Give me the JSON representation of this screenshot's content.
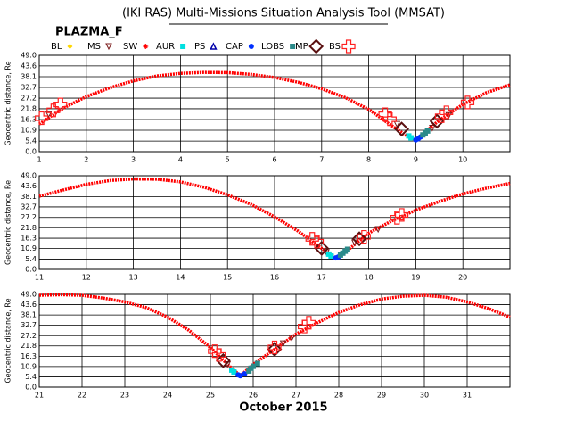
{
  "title": "(IKI RAS) Multi-Missions Situation Analysis Tool (MMSAT)",
  "subtitle": "PLAZMA_F",
  "xlabel": "October 2015",
  "chart_data": [
    {
      "type": "scatter",
      "ylabel": "Geocentric distance, Re",
      "xlim": [
        1,
        11
      ],
      "ylim": [
        0,
        49
      ],
      "grid": true,
      "xticks": [
        1,
        2,
        3,
        4,
        5,
        6,
        7,
        8,
        9,
        10
      ],
      "yticks": [
        {
          "value": 0,
          "label": "0.0"
        },
        5.4,
        10.9,
        16.3,
        21.8,
        27.2,
        32.7,
        38.1,
        43.6,
        {
          "value": 49,
          "label": "49.0"
        }
      ],
      "series": [
        {
          "name": "BL",
          "color": "#ffd700",
          "marker": "diamond",
          "x": [],
          "values": []
        },
        {
          "name": "MS",
          "color": "#7a1a1a",
          "marker": "tri-down",
          "x": [
            1.2,
            8.6,
            9.35,
            9.7
          ],
          "values": [
            19,
            14,
            12,
            18.5
          ]
        },
        {
          "name": "SW",
          "color": "#ff0000",
          "marker": "line",
          "x": [
            1,
            1.5,
            2,
            2.5,
            3,
            3.5,
            4,
            4.5,
            5,
            5.5,
            6,
            6.5,
            7,
            7.5,
            8,
            8.5,
            8.9,
            9,
            9.5,
            10,
            10.5,
            11
          ],
          "values": [
            14,
            22,
            28,
            32.5,
            36,
            38.5,
            39.8,
            40.3,
            40.2,
            39.3,
            37.7,
            35.3,
            32,
            27.5,
            21.5,
            13,
            6.5,
            6,
            16,
            24,
            30,
            34
          ]
        },
        {
          "name": "AUR",
          "color": "#00e0e0",
          "marker": "square",
          "x": [
            8.85,
            8.9
          ],
          "values": [
            8,
            7
          ]
        },
        {
          "name": "PS",
          "color": "#0000aa",
          "marker": "tri-up",
          "x": [],
          "values": []
        },
        {
          "name": "CAP",
          "color": "#0030ff",
          "marker": "dot",
          "x": [
            9,
            9.05,
            9.1
          ],
          "values": [
            6,
            6.5,
            7.5
          ]
        },
        {
          "name": "LOBS",
          "color": "#2a8a8a",
          "marker": "square",
          "x": [
            9.15,
            9.2,
            9.25
          ],
          "values": [
            8.5,
            9.5,
            10.5
          ]
        },
        {
          "name": "MP",
          "color": "#5a1010",
          "marker": "big-diamond",
          "x": [
            8.7,
            9.45
          ],
          "values": [
            11.5,
            15.5
          ]
        },
        {
          "name": "BS",
          "color": "#ff2020",
          "marker": "cross",
          "x": [
            1.05,
            1.3,
            1.45,
            8.35,
            8.45,
            9.55,
            9.65,
            10.1
          ],
          "values": [
            17,
            21,
            24,
            19,
            16.5,
            18,
            20,
            25
          ]
        }
      ]
    },
    {
      "type": "scatter",
      "ylabel": "Geocentric distance, Re",
      "xlim": [
        11,
        21
      ],
      "ylim": [
        0,
        49
      ],
      "grid": true,
      "xticks": [
        11,
        12,
        13,
        14,
        15,
        16,
        17,
        18,
        19,
        20
      ],
      "yticks": [
        {
          "value": 0,
          "label": "0.0"
        },
        5.4,
        10.9,
        16.3,
        21.8,
        27.2,
        32.7,
        38.1,
        43.6,
        {
          "value": 49,
          "label": "49.0"
        }
      ],
      "series": [
        {
          "color": "#ffd700",
          "marker": "diamond",
          "x": [],
          "values": []
        },
        {
          "color": "#7a1a1a",
          "marker": "tri-down",
          "x": [
            17.1,
            17.7,
            18.2
          ],
          "values": [
            9,
            14,
            21
          ]
        },
        {
          "color": "#ff0000",
          "marker": "line",
          "x": [
            11,
            11.5,
            12,
            12.5,
            13,
            13.5,
            14,
            14.5,
            15,
            15.5,
            16,
            16.5,
            17,
            17.3,
            17.6,
            18,
            18.5,
            19,
            19.5,
            20,
            20.5,
            21
          ],
          "values": [
            38.3,
            41.5,
            44.5,
            46.5,
            47.3,
            47.2,
            45.8,
            43,
            39,
            34,
            27.5,
            20,
            11,
            6,
            11,
            19,
            25.5,
            31,
            35.5,
            39.5,
            42.5,
            45
          ]
        },
        {
          "color": "#00e0e0",
          "marker": "square",
          "x": [
            17.15,
            17.2
          ],
          "values": [
            8,
            7
          ]
        },
        {
          "color": "#0000aa",
          "marker": "tri-up",
          "x": [],
          "values": []
        },
        {
          "color": "#0030ff",
          "marker": "dot",
          "x": [
            17.3,
            17.35
          ],
          "values": [
            6,
            6.5
          ]
        },
        {
          "color": "#2a8a8a",
          "marker": "square",
          "x": [
            17.4,
            17.45,
            17.5,
            17.55
          ],
          "values": [
            7.5,
            8.5,
            9.5,
            10.5
          ]
        },
        {
          "color": "#5a1010",
          "marker": "big-diamond",
          "x": [
            17,
            17.8
          ],
          "values": [
            11,
            16
          ]
        },
        {
          "color": "#ff2020",
          "marker": "cross",
          "x": [
            16.8,
            16.9,
            17.9,
            18.6,
            18.7
          ],
          "values": [
            16,
            14.5,
            17,
            27,
            28.5
          ]
        }
      ]
    },
    {
      "type": "scatter",
      "ylabel": "Geocentric distance, Re",
      "xlim": [
        21,
        32
      ],
      "ylim": [
        0,
        49
      ],
      "grid": true,
      "xticks": [
        21,
        22,
        23,
        24,
        25,
        26,
        27,
        28,
        29,
        30,
        31
      ],
      "yticks": [
        {
          "value": 0,
          "label": "0.0"
        },
        5.4,
        10.9,
        16.3,
        21.8,
        27.2,
        32.7,
        38.1,
        43.6,
        {
          "value": 49,
          "label": "49.0"
        }
      ],
      "series": [
        {
          "color": "#ffd700",
          "marker": "diamond",
          "x": [],
          "values": []
        },
        {
          "color": "#7a1a1a",
          "marker": "tri-down",
          "x": [
            25.4,
            26.7,
            26.9
          ],
          "values": [
            12,
            23,
            26
          ]
        },
        {
          "color": "#ff0000",
          "marker": "line",
          "x": [
            21,
            21.5,
            22,
            22.5,
            23,
            23.5,
            24,
            24.5,
            25,
            25.4,
            25.7,
            26,
            26.5,
            27,
            27.5,
            28,
            28.5,
            29,
            29.5,
            30,
            30.5,
            31,
            31.5,
            32
          ],
          "values": [
            48.5,
            48.8,
            48.5,
            47,
            45,
            42,
            37,
            30,
            21,
            12,
            6,
            12,
            20,
            28,
            34,
            39.5,
            43.5,
            46.5,
            48,
            48.5,
            47.5,
            45,
            41.5,
            37
          ]
        },
        {
          "color": "#00e0e0",
          "marker": "square",
          "x": [
            25.5,
            25.55
          ],
          "values": [
            9,
            8
          ]
        },
        {
          "color": "#0000aa",
          "marker": "tri-up",
          "x": [],
          "values": []
        },
        {
          "color": "#0030ff",
          "marker": "dot",
          "x": [
            25.65,
            25.7,
            25.8
          ],
          "values": [
            6.5,
            6,
            7
          ]
        },
        {
          "color": "#2a8a8a",
          "marker": "square",
          "x": [
            25.9,
            25.95,
            26,
            26.1
          ],
          "values": [
            8.5,
            10,
            11,
            12.5
          ]
        },
        {
          "color": "#5a1010",
          "marker": "big-diamond",
          "x": [
            25.3,
            26.5
          ],
          "values": [
            14,
            20
          ]
        },
        {
          "color": "#ff2020",
          "marker": "cross",
          "x": [
            25.1,
            25.2,
            26.5,
            27.2,
            27.3
          ],
          "values": [
            19,
            17,
            21,
            32,
            34
          ]
        }
      ]
    }
  ]
}
